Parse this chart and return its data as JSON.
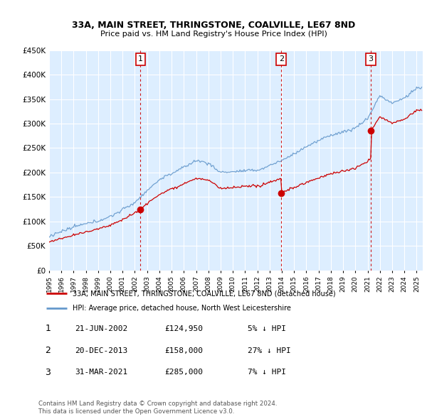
{
  "title": "33A, MAIN STREET, THRINGSTONE, COALVILLE, LE67 8ND",
  "subtitle": "Price paid vs. HM Land Registry's House Price Index (HPI)",
  "ylim": [
    0,
    450000
  ],
  "yticks": [
    0,
    50000,
    100000,
    150000,
    200000,
    250000,
    300000,
    350000,
    400000,
    450000
  ],
  "background_color": "#ffffff",
  "plot_bg_color": "#ddeeff",
  "grid_color": "#ffffff",
  "transaction_labels": [
    {
      "num": "1",
      "date": "21-JUN-2002",
      "price": "£124,950",
      "pct": "5% ↓ HPI",
      "year": 2002.46,
      "paid": 124950
    },
    {
      "num": "2",
      "date": "20-DEC-2013",
      "price": "£158,000",
      "pct": "27% ↓ HPI",
      "year": 2013.96,
      "paid": 158000
    },
    {
      "num": "3",
      "date": "31-MAR-2021",
      "price": "£285,000",
      "pct": "7% ↓ HPI",
      "year": 2021.25,
      "paid": 285000
    }
  ],
  "legend_line1": "33A, MAIN STREET, THRINGSTONE, COALVILLE, LE67 8ND (detached house)",
  "legend_line2": "HPI: Average price, detached house, North West Leicestershire",
  "footer1": "Contains HM Land Registry data © Crown copyright and database right 2024.",
  "footer2": "This data is licensed under the Open Government Licence v3.0.",
  "hpi_color": "#6699cc",
  "price_color": "#cc0000",
  "vline_color": "#cc0000",
  "marker_color": "#cc0000"
}
